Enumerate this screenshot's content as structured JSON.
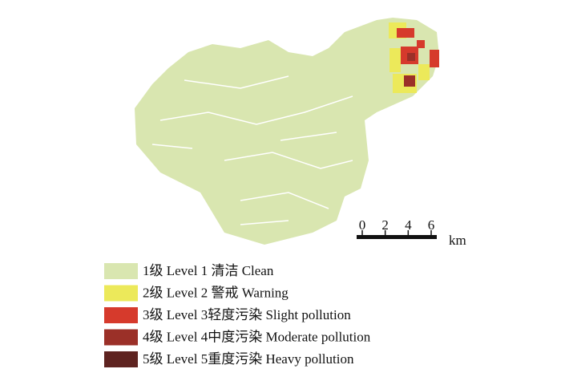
{
  "legend": {
    "items": [
      {
        "label": "1级 Level 1 清洁 Clean",
        "color": "#d9e6b0"
      },
      {
        "label": "2级 Level 2 警戒 Warning",
        "color": "#ece95a"
      },
      {
        "label": "3级 Level 3轻度污染 Slight pollution",
        "color": "#d63a2c"
      },
      {
        "label": "4级 Level 4中度污染 Moderate pollution",
        "color": "#9b3028"
      },
      {
        "label": "5级 Level 5重度污染 Heavy pollution",
        "color": "#5e2320"
      }
    ]
  },
  "scale_bar": {
    "ticks": [
      0,
      2,
      4,
      6
    ],
    "unit": "km"
  }
}
